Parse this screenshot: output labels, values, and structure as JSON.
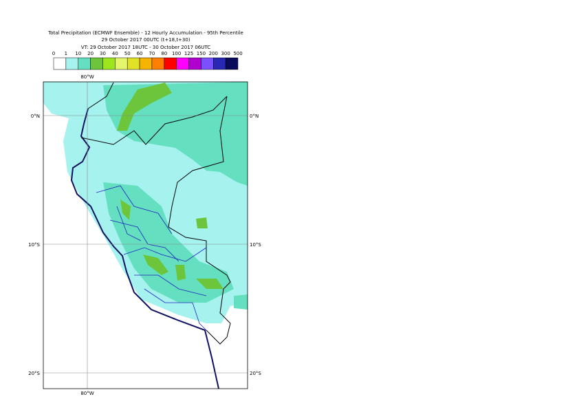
{
  "title_lines": [
    "Total Precipitation (ECMWF Ensemble) - 12 Hourly Accumulation - 95th Percentile",
    "29 October 2017 00UTC (t+18,t+30)",
    "VT: 29 October 2017 18UTC - 30 October 2017 06UTC"
  ],
  "legend": {
    "labels": [
      0,
      1,
      10,
      20,
      30,
      40,
      50,
      60,
      70,
      80,
      100,
      125,
      150,
      200,
      300,
      500
    ],
    "colors": [
      "#ffffff",
      "#a6f2ef",
      "#64e0c0",
      "#6cc53a",
      "#9de61d",
      "#e6f56e",
      "#e1e12a",
      "#f5b400",
      "#ff8000",
      "#ff0000",
      "#ff00ff",
      "#b000d0",
      "#7a50ff",
      "#2828b4",
      "#0a0a5a"
    ]
  },
  "map": {
    "lon_labels": [
      "80°W"
    ],
    "lat_labels": [
      "0°N",
      "10°S",
      "20°S"
    ]
  }
}
